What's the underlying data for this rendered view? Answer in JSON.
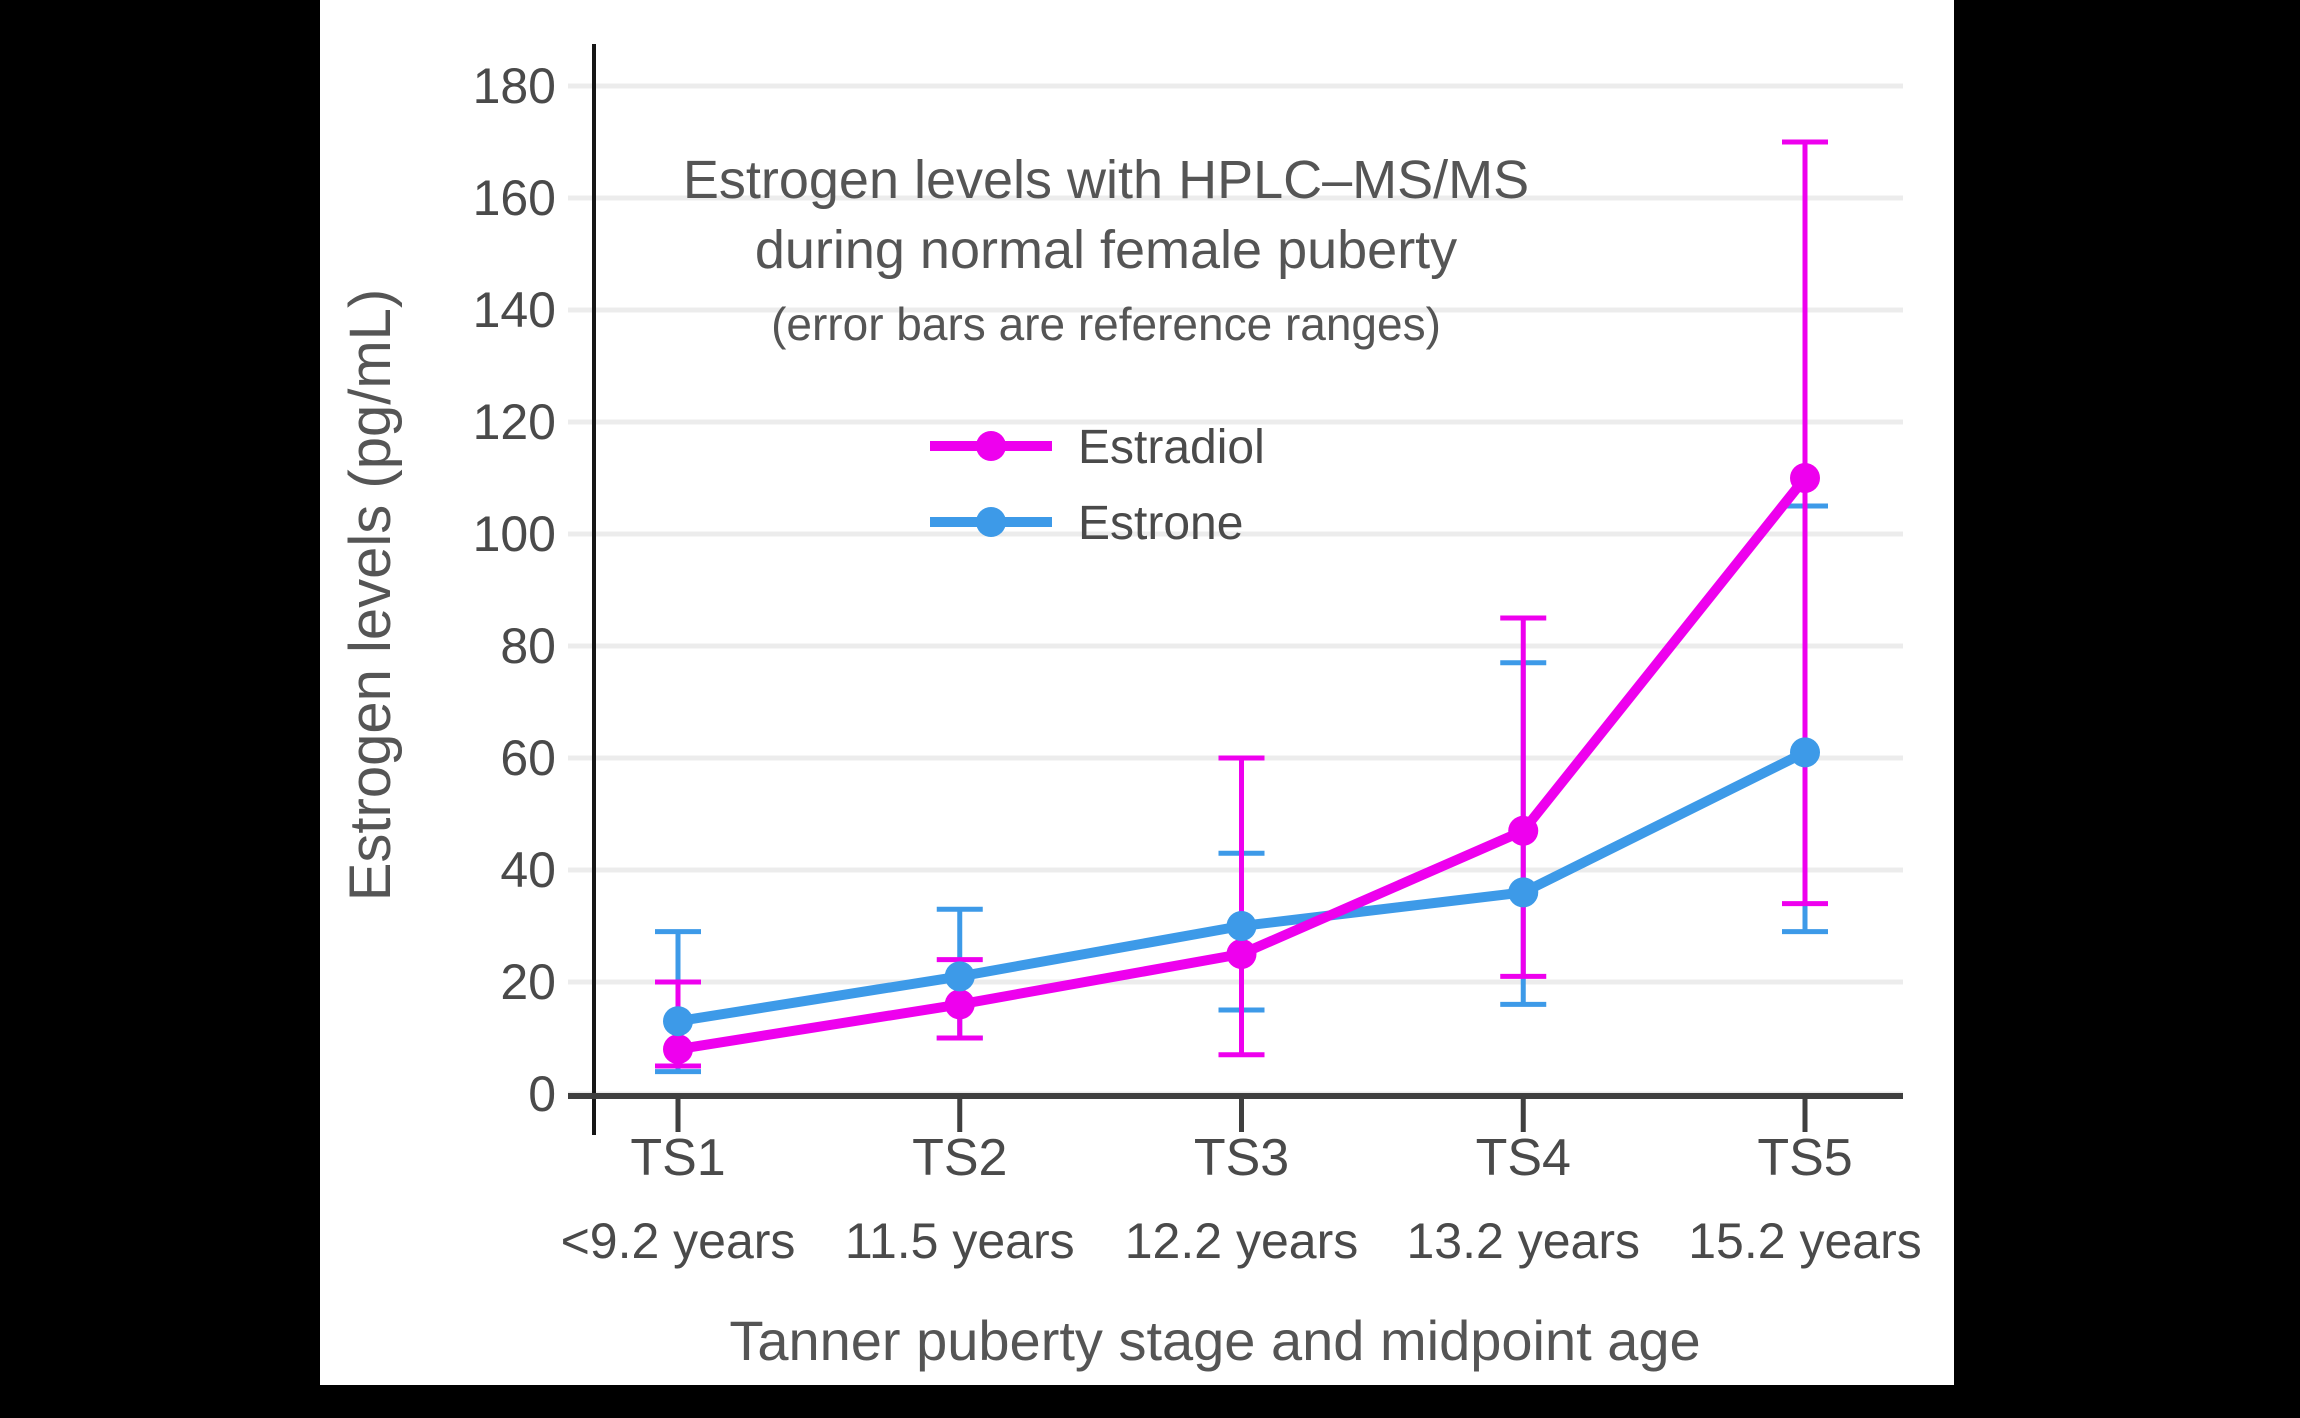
{
  "colors": {
    "background": "#000000",
    "panel": "#FFFFFF",
    "grid": "#ECECEC",
    "tick_text": "#4A4A4A",
    "title_text": "#555555",
    "x_axis_line": "#3F3F3F",
    "y_axis_line": "#161616",
    "estradiol": "#EE00EE",
    "estrone": "#3D9AE8"
  },
  "chart_data": {
    "type": "line",
    "title_line1": "Estrogen levels with HPLC–MS/MS",
    "title_line2": "during normal female puberty",
    "subtitle": "(error bars are reference ranges)",
    "xlabel": "Tanner puberty stage and midpoint age",
    "ylabel": "Estrogen levels (pg/mL)",
    "categories": [
      "TS1",
      "TS2",
      "TS3",
      "TS4",
      "TS5"
    ],
    "category_sublabels": [
      "<9.2 years",
      "11.5 years",
      "12.2 years",
      "13.2 years",
      "15.2 years"
    ],
    "yticks": [
      0,
      20,
      40,
      60,
      80,
      100,
      120,
      140,
      160,
      180
    ],
    "ylim": [
      0,
      187.5
    ],
    "grid": true,
    "legend_position": "inside-upper-left",
    "error_bar_meaning": "reference ranges",
    "series": [
      {
        "name": "Estradiol",
        "color": "#EE00EE",
        "values": [
          8,
          16,
          25,
          47,
          110
        ],
        "error_low": [
          5,
          10,
          7,
          21,
          34
        ],
        "error_high": [
          20,
          24,
          60,
          85,
          170
        ]
      },
      {
        "name": "Estrone",
        "color": "#3D9AE8",
        "values": [
          13,
          21,
          30,
          36,
          61
        ],
        "error_low": [
          4,
          10,
          15,
          16,
          29
        ],
        "error_high": [
          29,
          33,
          43,
          77,
          105
        ]
      }
    ]
  }
}
